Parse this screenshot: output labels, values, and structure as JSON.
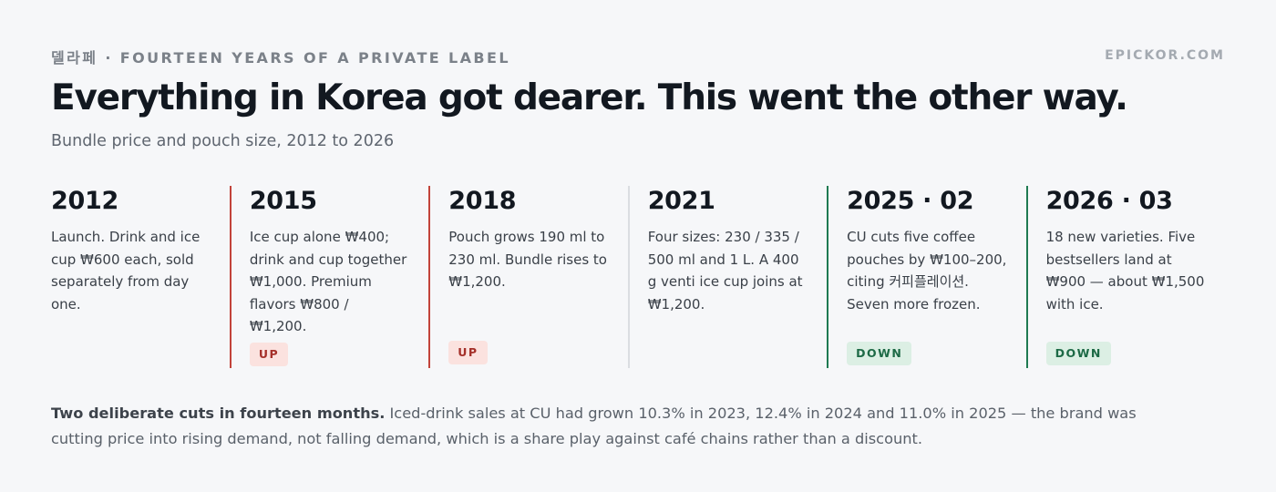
{
  "header": {
    "kicker": "델라페 · FOURTEEN YEARS OF A PRIVATE LABEL",
    "brand": "EPICKOR.COM",
    "title": "Everything in Korea got dearer. This went the other way.",
    "subtitle": "Bundle price and pouch size, 2012 to 2026"
  },
  "timeline": [
    {
      "year": "2012",
      "text": "Launch. Drink and ice cup ₩600 each, sold separately from day one.",
      "tag": "",
      "direction": "none"
    },
    {
      "year": "2015",
      "text": "Ice cup alone ₩400; drink and cup together ₩1,000. Premium flavors ₩800 / ₩1,200.",
      "tag": "UP",
      "direction": "up"
    },
    {
      "year": "2018",
      "text": "Pouch grows 190 ml to 230 ml. Bundle rises to ₩1,200.",
      "tag": "UP",
      "direction": "up"
    },
    {
      "year": "2021",
      "text": "Four sizes: 230 / 335 / 500 ml and 1 L. A 400 g venti ice cup joins at ₩1,200.",
      "tag": "",
      "direction": "flat"
    },
    {
      "year": "2025 · 02",
      "text": "CU cuts five coffee pouches by ₩100–200, citing 커피플레이션. Seven more frozen.",
      "tag": "DOWN",
      "direction": "down"
    },
    {
      "year": "2026 · 03",
      "text": "18 new varieties. Five bestsellers land at ₩900 — about ₩1,500 with ice.",
      "tag": "DOWN",
      "direction": "down"
    }
  ],
  "footnote": {
    "lead": "Two deliberate cuts in fourteen months.",
    "body": " Iced-drink sales at CU had grown 10.3% in 2023, 12.4% in 2024 and 11.0% in 2025 — the brand was cutting price into rising demand, not falling demand, which is a share play against café chains rather than a discount."
  }
}
